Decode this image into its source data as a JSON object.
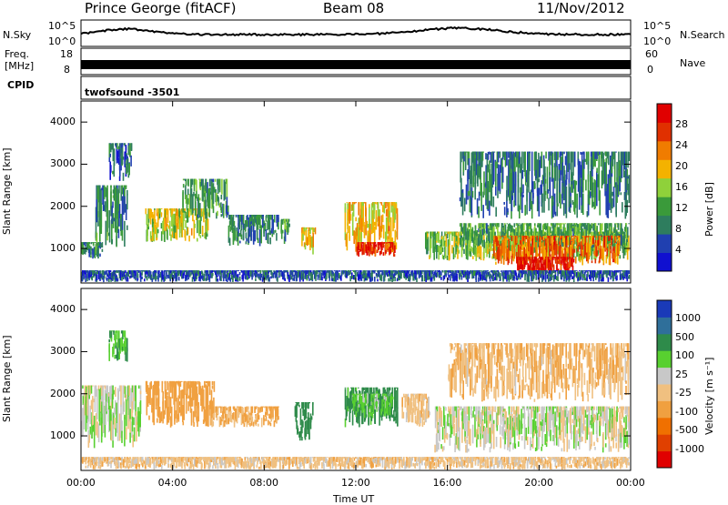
{
  "header": {
    "station": "Prince George (fitACF)",
    "beam": "Beam 08",
    "date": "11/Nov/2012"
  },
  "strip_labels": {
    "nsky_label": "N.Sky",
    "nsky_top": "10^5",
    "nsky_bottom": "10^0",
    "nsearch_label": "N.Search",
    "nsearch_top": "10^5",
    "nsearch_bottom": "10^0",
    "freq_label_1": "Freq.",
    "freq_label_2": "[MHz]",
    "freq_top": "18",
    "freq_bottom": "8",
    "nave_label": "Nave",
    "nave_top": "60",
    "nave_bottom": "0",
    "cpid_label": "CPID",
    "cpid_value": "twofsound  -3501"
  },
  "chart_data": [
    {
      "type": "heatmap",
      "name": "power",
      "ylabel": "Slant Range [km]",
      "ylim": [
        180,
        4500
      ],
      "yticks": [
        "4000",
        "3000",
        "2000",
        "1000"
      ],
      "colorbar_label": "Power [dB]",
      "colorbar_ticks": [
        "28",
        "24",
        "20",
        "16",
        "12",
        "8",
        "4"
      ],
      "colorbar_colors": [
        "#1010d0",
        "#2040b0",
        "#2e7d5e",
        "#3a9a3a",
        "#8fd13a",
        "#f4b200",
        "#f07c00",
        "#e03000",
        "#e00000"
      ],
      "regions": [
        {
          "t0": 0.0,
          "t1": 0.9,
          "r0": 750,
          "r1": 1150,
          "level": 10
        },
        {
          "t0": 0.6,
          "t1": 2.0,
          "r0": 1000,
          "r1": 2500,
          "level": 10
        },
        {
          "t0": 1.2,
          "t1": 2.2,
          "r0": 2600,
          "r1": 3500,
          "level": 7
        },
        {
          "t0": 2.8,
          "t1": 5.6,
          "r0": 1150,
          "r1": 1950,
          "level": 17
        },
        {
          "t0": 4.4,
          "t1": 6.4,
          "r0": 1700,
          "r1": 2650,
          "level": 11
        },
        {
          "t0": 6.4,
          "t1": 8.6,
          "r0": 1050,
          "r1": 1800,
          "level": 9
        },
        {
          "t0": 8.7,
          "t1": 9.1,
          "r0": 1100,
          "r1": 1700,
          "level": 12
        },
        {
          "t0": 9.6,
          "t1": 10.2,
          "r0": 850,
          "r1": 1500,
          "level": 20
        },
        {
          "t0": 11.5,
          "t1": 13.8,
          "r0": 900,
          "r1": 2100,
          "level": 20
        },
        {
          "t0": 12.0,
          "t1": 13.7,
          "r0": 800,
          "r1": 1150,
          "level": 28
        },
        {
          "t0": 15.0,
          "t1": 23.9,
          "r0": 700,
          "r1": 1400,
          "level": 15
        },
        {
          "t0": 16.5,
          "t1": 23.9,
          "r0": 1000,
          "r1": 1600,
          "level": 12
        },
        {
          "t0": 18.0,
          "t1": 23.5,
          "r0": 600,
          "r1": 1300,
          "level": 24
        },
        {
          "t0": 19.0,
          "t1": 21.5,
          "r0": 380,
          "r1": 800,
          "level": 29
        },
        {
          "t0": 16.5,
          "t1": 23.9,
          "r0": 1700,
          "r1": 3300,
          "level": 9
        },
        {
          "t0": 0.0,
          "t1": 23.9,
          "r0": 200,
          "r1": 480,
          "level": 6
        }
      ]
    },
    {
      "type": "heatmap",
      "name": "velocity",
      "ylabel": "Slant Range [km]",
      "ylim": [
        180,
        4500
      ],
      "yticks": [
        "4000",
        "3000",
        "2000",
        "1000"
      ],
      "xlabel": "Time UT",
      "xticks": [
        "00:00",
        "04:00",
        "08:00",
        "12:00",
        "16:00",
        "20:00",
        "00:00"
      ],
      "xlim": [
        0,
        24
      ],
      "colorbar_label": "Velocity [m s⁻¹]",
      "colorbar_ticks": [
        "1000",
        "500",
        "100",
        "25",
        "-25",
        "-100",
        "-500",
        "-1000"
      ],
      "colorbar_colors": [
        "#1a3ab8",
        "#2f6f9a",
        "#2e8b4a",
        "#58d030",
        "#c8c8c8",
        "#f0c080",
        "#f0a040",
        "#f07000",
        "#e04000",
        "#e00000"
      ],
      "regions": [
        {
          "t0": 0.0,
          "t1": 2.6,
          "r0": 700,
          "r1": 2200,
          "level": 0
        },
        {
          "t0": 1.2,
          "t1": 2.0,
          "r0": 2700,
          "r1": 3500,
          "level": 100
        },
        {
          "t0": 2.8,
          "t1": 5.8,
          "r0": 1200,
          "r1": 2300,
          "level": -300
        },
        {
          "t0": 5.6,
          "t1": 8.6,
          "r0": 1200,
          "r1": 1700,
          "level": -120
        },
        {
          "t0": 9.3,
          "t1": 10.1,
          "r0": 850,
          "r1": 1800,
          "level": 200
        },
        {
          "t0": 11.5,
          "t1": 13.8,
          "r0": 1200,
          "r1": 2150,
          "level": 150
        },
        {
          "t0": 11.8,
          "t1": 13.6,
          "r0": 1400,
          "r1": 2000,
          "level": 60
        },
        {
          "t0": 14.0,
          "t1": 15.2,
          "r0": 1200,
          "r1": 2000,
          "level": -60
        },
        {
          "t0": 15.4,
          "t1": 23.9,
          "r0": 600,
          "r1": 1700,
          "level": 0
        },
        {
          "t0": 16.0,
          "t1": 23.9,
          "r0": 1800,
          "r1": 3200,
          "level": -80
        },
        {
          "t0": 0.0,
          "t1": 23.9,
          "r0": 200,
          "r1": 500,
          "level": -60
        }
      ]
    }
  ]
}
